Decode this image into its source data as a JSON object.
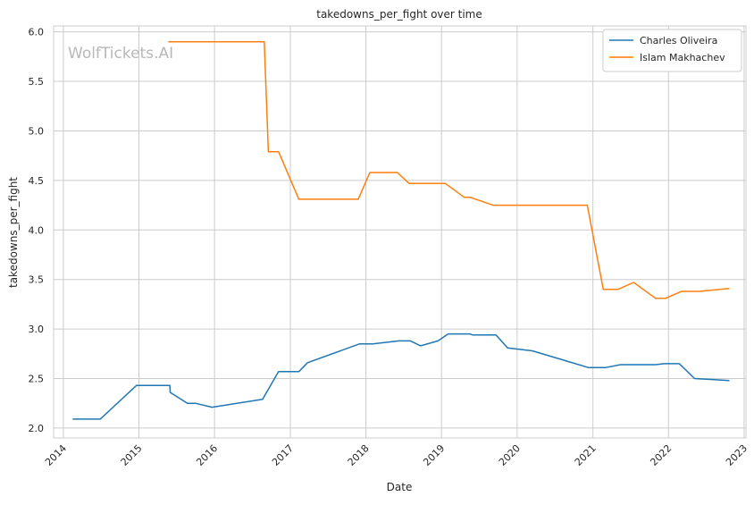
{
  "chart_data": {
    "type": "line",
    "title": "takedowns_per_fight over time",
    "xlabel": "Date",
    "ylabel": "takedowns_per_fight",
    "xlim": [
      "2013-11-15",
      "2023-01-10"
    ],
    "ylim": [
      1.9,
      6.06
    ],
    "x_ticks": [
      "2014",
      "2015",
      "2016",
      "2017",
      "2018",
      "2019",
      "2020",
      "2021",
      "2022",
      "2023"
    ],
    "y_ticks": [
      "2.0",
      "2.5",
      "3.0",
      "3.5",
      "4.0",
      "4.5",
      "5.0",
      "5.5",
      "6.0"
    ],
    "grid": true,
    "legend_position": "top-right",
    "series": [
      {
        "name": "Charles Oliveira",
        "color": "#1f77b4",
        "points": [
          [
            "2014-02-15",
            2.09
          ],
          [
            "2014-06-28",
            2.09
          ],
          [
            "2014-12-20",
            2.43
          ],
          [
            "2015-05-30",
            2.43
          ],
          [
            "2015-06-01",
            2.36
          ],
          [
            "2015-08-23",
            2.25
          ],
          [
            "2015-10-01",
            2.25
          ],
          [
            "2015-12-20",
            2.21
          ],
          [
            "2016-08-20",
            2.29
          ],
          [
            "2016-11-05",
            2.57
          ],
          [
            "2017-02-11",
            2.57
          ],
          [
            "2017-03-25",
            2.66
          ],
          [
            "2017-12-02",
            2.85
          ],
          [
            "2018-02-03",
            2.85
          ],
          [
            "2018-06-09",
            2.88
          ],
          [
            "2018-08-04",
            2.88
          ],
          [
            "2018-09-22",
            2.83
          ],
          [
            "2018-12-15",
            2.88
          ],
          [
            "2019-02-02",
            2.95
          ],
          [
            "2019-05-18",
            2.95
          ],
          [
            "2019-06-01",
            2.94
          ],
          [
            "2019-09-21",
            2.94
          ],
          [
            "2019-11-16",
            2.81
          ],
          [
            "2020-03-14",
            2.78
          ],
          [
            "2020-12-12",
            2.61
          ],
          [
            "2021-03-01",
            2.61
          ],
          [
            "2021-05-15",
            2.64
          ],
          [
            "2021-10-30",
            2.64
          ],
          [
            "2021-12-11",
            2.65
          ],
          [
            "2022-02-22",
            2.65
          ],
          [
            "2022-05-07",
            2.5
          ],
          [
            "2022-10-22",
            2.48
          ]
        ]
      },
      {
        "name": "Islam Makhachev",
        "color": "#ff7f0e",
        "points": [
          [
            "2015-05-23",
            5.9
          ],
          [
            "2016-08-28",
            5.9
          ],
          [
            "2016-09-17",
            4.79
          ],
          [
            "2016-11-05",
            4.79
          ],
          [
            "2017-02-11",
            4.31
          ],
          [
            "2017-11-25",
            4.31
          ],
          [
            "2018-01-20",
            4.58
          ],
          [
            "2018-06-02",
            4.58
          ],
          [
            "2018-07-28",
            4.47
          ],
          [
            "2019-01-19",
            4.47
          ],
          [
            "2019-04-20",
            4.33
          ],
          [
            "2019-05-18",
            4.33
          ],
          [
            "2019-09-07",
            4.25
          ],
          [
            "2020-12-05",
            4.25
          ],
          [
            "2021-02-20",
            3.4
          ],
          [
            "2021-05-01",
            3.4
          ],
          [
            "2021-07-17",
            3.47
          ],
          [
            "2021-10-30",
            3.31
          ],
          [
            "2021-12-18",
            3.31
          ],
          [
            "2022-03-05",
            3.38
          ],
          [
            "2022-05-28",
            3.38
          ],
          [
            "2022-10-22",
            3.41
          ]
        ]
      }
    ]
  },
  "watermark": "WolfTickets.AI"
}
